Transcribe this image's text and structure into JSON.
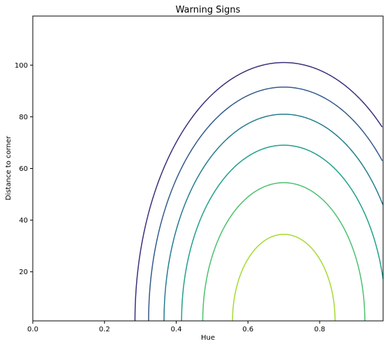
{
  "chart_data": {
    "type": "contour",
    "title": "Warning Signs",
    "xlabel": "Hue",
    "ylabel": "Distance to corner",
    "xlim": [
      0.0,
      0.977
    ],
    "ylim": [
      1.0,
      119.0
    ],
    "x_ticks": [
      0.0,
      0.2,
      0.4,
      0.6,
      0.8
    ],
    "x_tick_labels": [
      "0.0",
      "0.2",
      "0.4",
      "0.6",
      "0.8"
    ],
    "y_ticks": [
      20,
      40,
      60,
      80,
      100
    ],
    "y_tick_labels": [
      "20",
      "40",
      "60",
      "80",
      "100"
    ],
    "grid": false,
    "colormap": "viridis",
    "contours": [
      {
        "center_x": 0.7,
        "peak_y": 101.0,
        "x_at_bottom_left": 0.285,
        "color": "#3b2f7a"
      },
      {
        "center_x": 0.7,
        "peak_y": 91.5,
        "x_at_bottom_left": 0.323,
        "color": "#33598b"
      },
      {
        "center_x": 0.7,
        "peak_y": 81.0,
        "x_at_bottom_left": 0.366,
        "color": "#237c8e"
      },
      {
        "center_x": 0.7,
        "peak_y": 69.0,
        "x_at_bottom_left": 0.415,
        "color": "#1fa08a"
      },
      {
        "center_x": 0.7,
        "peak_y": 54.5,
        "x_at_bottom_left": 0.474,
        "color": "#4ac16d"
      },
      {
        "center_x": 0.7,
        "peak_y": 34.5,
        "x_at_bottom_left": 0.557,
        "color": "#a5da32"
      }
    ]
  }
}
